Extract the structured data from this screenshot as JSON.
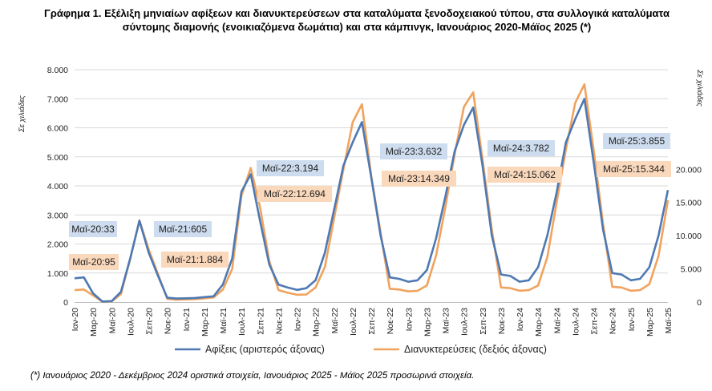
{
  "title_line1": "Γράφημα 1. Εξέλιξη μηνιαίων αφίξεων και διανυκτερεύσεων στα καταλύματα ξενοδοχειακού τύπου, στα συλλογικά καταλύματα",
  "title_line2": "σύντομης διαμονής (ενοικιαζόμενα δωμάτια) και στα κάμπινγκ, Ιανουάριος 2020-Μάϊος 2025 (*)",
  "footnote": "(*) Ιανουάριος 2020 - Δεκέμβριος 2024 οριστικά στοιχεία, Ιανουάριος 2025 - Μάϊος 2025 προσωρινά στοιχεία.",
  "colors": {
    "arrivals": "#4e79b3",
    "nights": "#f0a35e",
    "arrivals_box": "#cddcee",
    "nights_box": "#fad8bc"
  },
  "chart_data": {
    "type": "line",
    "title": "Γράφημα 1. Εξέλιξη μηνιαίων αφίξεων και διανυκτερεύσεων στα καταλύματα ξενοδοχειακού τύπου, στα συλλογικά καταλύματα σύντομης διαμονής (ενοικιαζόμενα δωμάτια) και στα κάμπινγκ, Ιανουάριος 2020-Μάϊος 2025 (*)",
    "ylabel_left": "Σε χιλιάδες",
    "ylabel_right": "Σε χιλιάδες",
    "ylim_left": [
      0,
      8000
    ],
    "ylim_right": [
      0,
      35000
    ],
    "left_ticks": [
      "0",
      "1.000",
      "2.000",
      "3.000",
      "4.000",
      "5.000",
      "6.000",
      "7.000",
      "8.000"
    ],
    "right_ticks": [
      "0",
      "5.000",
      "10.000",
      "15.000",
      "20.000"
    ],
    "x_labels": [
      "Ιαν-20",
      "Μαρ-20",
      "Μαϊ-20",
      "Ιουλ-20",
      "Σεπ-20",
      "Νοε-20",
      "Ιαν-21",
      "Μαρ-21",
      "Μαϊ-21",
      "Ιουλ-21",
      "Σεπ-21",
      "Νοε-21",
      "Ιαν-22",
      "Μαρ-22",
      "Μαϊ-22",
      "Ιουλ-22",
      "Σεπ-22",
      "Νοε-22",
      "Ιαν-23",
      "Μαρ-23",
      "Μαϊ-23",
      "Ιουλ-23",
      "Σεπ-23",
      "Νοε-23",
      "Ιαν-24",
      "Μαρ-24",
      "Μαϊ-24",
      "Ιουλ-24",
      "Σεπ-24",
      "Νοε-24",
      "Ιαν-25",
      "Μαρ-25",
      "Μαϊ-25"
    ],
    "series": [
      {
        "name": "Αφίξεις (αριστερός άξονας)",
        "axis": "left",
        "values": [
          820,
          850,
          300,
          20,
          33,
          350,
          1500,
          2800,
          1700,
          900,
          150,
          120,
          130,
          140,
          170,
          200,
          605,
          1500,
          3800,
          4400,
          2800,
          1300,
          600,
          500,
          420,
          480,
          750,
          1700,
          3194,
          4700,
          5500,
          6200,
          4300,
          2300,
          850,
          800,
          700,
          750,
          1100,
          2200,
          3632,
          5200,
          6100,
          6700,
          4700,
          2300,
          950,
          900,
          700,
          750,
          1200,
          2300,
          3782,
          5500,
          6300,
          7000,
          4800,
          2500,
          1000,
          950,
          750,
          800,
          1200,
          2300,
          3855
        ]
      },
      {
        "name": "Διανυκτερεύσεις (δεξιός άξονας)",
        "axis": "right",
        "values": [
          1800,
          1900,
          1000,
          50,
          95,
          1200,
          6500,
          12300,
          7900,
          4200,
          500,
          350,
          400,
          450,
          550,
          700,
          1884,
          5000,
          16000,
          20200,
          14300,
          6200,
          1800,
          1400,
          1100,
          1150,
          2200,
          5300,
          12694,
          20000,
          27100,
          29800,
          19000,
          10500,
          2000,
          1900,
          1600,
          1700,
          2500,
          7000,
          14349,
          22300,
          29400,
          31600,
          21500,
          11000,
          2200,
          2100,
          1700,
          1800,
          2500,
          6800,
          15062,
          23000,
          30000,
          32800,
          22800,
          11800,
          2300,
          2200,
          1700,
          1800,
          2700,
          7000,
          15344
        ]
      }
    ],
    "annotations": {
      "arrivals": [
        "Μαϊ-20:33",
        "Μαϊ-21:605",
        "Μαϊ-22:3.194",
        "Μαϊ-23:3.632",
        "Μαϊ-24:3.782",
        "Μαϊ-25:3.855"
      ],
      "nights": [
        "Μαϊ-20:95",
        "Μαϊ-21:1.884",
        "Μαϊ-22:12.694",
        "Μαϊ-23:14.349",
        "Μαϊ-24:15.062",
        "Μαϊ-25:15.344"
      ]
    },
    "grid": true,
    "legend_position": "bottom"
  }
}
